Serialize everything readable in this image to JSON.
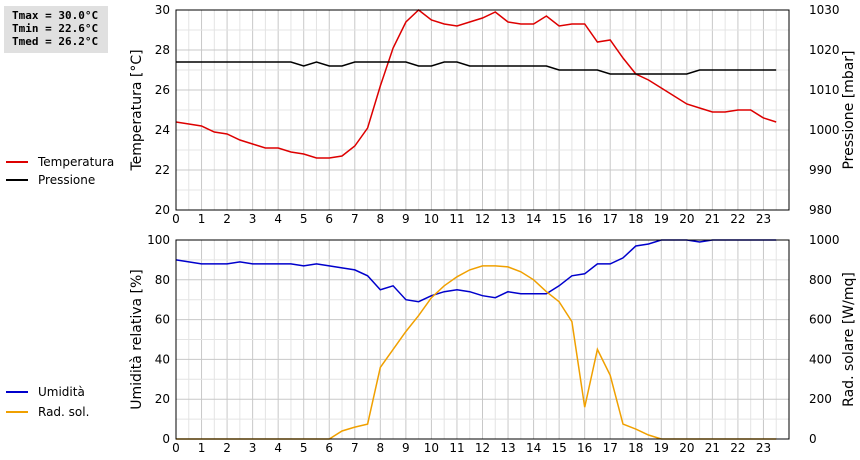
{
  "stats": {
    "tmax": "Tmax = 30.0°C",
    "tmin": "Tmin = 22.6°C",
    "tmed": "Tmed = 26.2°C"
  },
  "chart_data": [
    {
      "type": "line",
      "grid": true,
      "xlabel": "",
      "x_ticks": [
        0,
        1,
        2,
        3,
        4,
        5,
        6,
        7,
        8,
        9,
        10,
        11,
        12,
        13,
        14,
        15,
        16,
        17,
        18,
        19,
        20,
        21,
        22,
        23
      ],
      "xlim": [
        0,
        24
      ],
      "y_left": {
        "label": "Temperatura [°C]",
        "lim": [
          20,
          30
        ],
        "ticks": [
          20,
          22,
          24,
          26,
          28,
          30
        ]
      },
      "y_right": {
        "label": "Pressione [mbar]",
        "lim": [
          980,
          1030
        ],
        "ticks": [
          980,
          990,
          1000,
          1010,
          1020,
          1030
        ]
      },
      "legend": {
        "placement": "left"
      },
      "series": [
        {
          "name": "Temperatura",
          "axis": "left",
          "color": "#dd0000",
          "x": [
            0,
            0.5,
            1,
            1.5,
            2,
            2.5,
            3,
            3.5,
            4,
            4.5,
            5,
            5.5,
            6,
            6.5,
            7,
            7.5,
            8,
            8.5,
            9,
            9.5,
            10,
            10.5,
            11,
            11.5,
            12,
            12.5,
            13,
            13.5,
            14,
            14.5,
            15,
            15.5,
            16,
            16.5,
            17,
            17.5,
            18,
            18.5,
            19,
            19.5,
            20,
            20.5,
            21,
            21.5,
            22,
            22.5,
            23,
            23.5
          ],
          "values": [
            24.4,
            24.3,
            24.2,
            23.9,
            23.8,
            23.5,
            23.3,
            23.1,
            23.1,
            22.9,
            22.8,
            22.6,
            22.6,
            22.7,
            23.2,
            24.1,
            26.2,
            28.1,
            29.4,
            30.0,
            29.5,
            29.3,
            29.2,
            29.4,
            29.6,
            29.9,
            29.4,
            29.3,
            29.3,
            29.7,
            29.2,
            29.3,
            29.3,
            28.4,
            28.5,
            27.6,
            26.8,
            26.5,
            26.1,
            25.7,
            25.3,
            25.1,
            24.9,
            24.9,
            25.0,
            25.0,
            24.6,
            24.4
          ]
        },
        {
          "name": "Pressione",
          "axis": "right",
          "color": "#000000",
          "x": [
            0,
            0.5,
            1,
            1.5,
            2,
            2.5,
            3,
            3.5,
            4,
            4.5,
            5,
            5.5,
            6,
            6.5,
            7,
            7.5,
            8,
            8.5,
            9,
            9.5,
            10,
            10.5,
            11,
            11.5,
            12,
            12.5,
            13,
            13.5,
            14,
            14.5,
            15,
            15.5,
            16,
            16.5,
            17,
            17.5,
            18,
            18.5,
            19,
            19.5,
            20,
            20.5,
            21,
            21.5,
            22,
            22.5,
            23,
            23.5
          ],
          "values": [
            1017,
            1017,
            1017,
            1017,
            1017,
            1017,
            1017,
            1017,
            1017,
            1017,
            1016,
            1017,
            1016,
            1016,
            1017,
            1017,
            1017,
            1017,
            1017,
            1016,
            1016,
            1017,
            1017,
            1016,
            1016,
            1016,
            1016,
            1016,
            1016,
            1016,
            1015,
            1015,
            1015,
            1015,
            1014,
            1014,
            1014,
            1014,
            1014,
            1014,
            1014,
            1015,
            1015,
            1015,
            1015,
            1015,
            1015,
            1015
          ]
        }
      ]
    },
    {
      "type": "line",
      "grid": true,
      "xlabel": "",
      "x_ticks": [
        0,
        1,
        2,
        3,
        4,
        5,
        6,
        7,
        8,
        9,
        10,
        11,
        12,
        13,
        14,
        15,
        16,
        17,
        18,
        19,
        20,
        21,
        22,
        23
      ],
      "xlim": [
        0,
        24
      ],
      "y_left": {
        "label": "Umidità relativa [%]",
        "lim": [
          0,
          100
        ],
        "ticks": [
          0,
          20,
          40,
          60,
          80,
          100
        ]
      },
      "y_right": {
        "label": "Rad. solare [W/mq]",
        "lim": [
          0,
          1000
        ],
        "ticks": [
          0,
          200,
          400,
          600,
          800,
          1000
        ]
      },
      "legend": {
        "placement": "left"
      },
      "series": [
        {
          "name": "Umidità",
          "axis": "left",
          "color": "#0000cc",
          "x": [
            0,
            0.5,
            1,
            1.5,
            2,
            2.5,
            3,
            3.5,
            4,
            4.5,
            5,
            5.5,
            6,
            6.5,
            7,
            7.5,
            8,
            8.5,
            9,
            9.5,
            10,
            10.5,
            11,
            11.5,
            12,
            12.5,
            13,
            13.5,
            14,
            14.5,
            15,
            15.5,
            16,
            16.5,
            17,
            17.5,
            18,
            18.5,
            19,
            19.5,
            20,
            20.5,
            21,
            21.5,
            22,
            22.5,
            23,
            23.5
          ],
          "values": [
            90,
            89,
            88,
            88,
            88,
            89,
            88,
            88,
            88,
            88,
            87,
            88,
            87,
            86,
            85,
            82,
            75,
            77,
            70,
            69,
            72,
            74,
            75,
            74,
            72,
            71,
            74,
            73,
            73,
            73,
            77,
            82,
            83,
            88,
            88,
            91,
            97,
            98,
            100,
            100,
            100,
            99,
            100,
            100,
            100,
            100,
            100,
            100
          ]
        },
        {
          "name": "Rad. sol.",
          "axis": "right",
          "color": "#f0a000",
          "x": [
            0,
            0.5,
            1,
            1.5,
            2,
            2.5,
            3,
            3.5,
            4,
            4.5,
            5,
            5.5,
            6,
            6.5,
            7,
            7.5,
            8,
            8.5,
            9,
            9.5,
            10,
            10.5,
            11,
            11.5,
            12,
            12.5,
            13,
            13.5,
            14,
            14.5,
            15,
            15.5,
            16,
            16.5,
            17,
            17.5,
            18,
            18.5,
            19,
            19.5,
            20,
            20.5,
            21,
            21.5,
            22,
            22.5,
            23,
            23.5
          ],
          "values": [
            0,
            0,
            0,
            0,
            0,
            0,
            0,
            0,
            0,
            0,
            0,
            0,
            0,
            40,
            60,
            75,
            360,
            450,
            540,
            620,
            710,
            770,
            815,
            850,
            870,
            870,
            865,
            840,
            800,
            740,
            690,
            590,
            160,
            450,
            320,
            75,
            50,
            20,
            0,
            0,
            0,
            0,
            0,
            0,
            0,
            0,
            0,
            0
          ]
        }
      ]
    }
  ]
}
